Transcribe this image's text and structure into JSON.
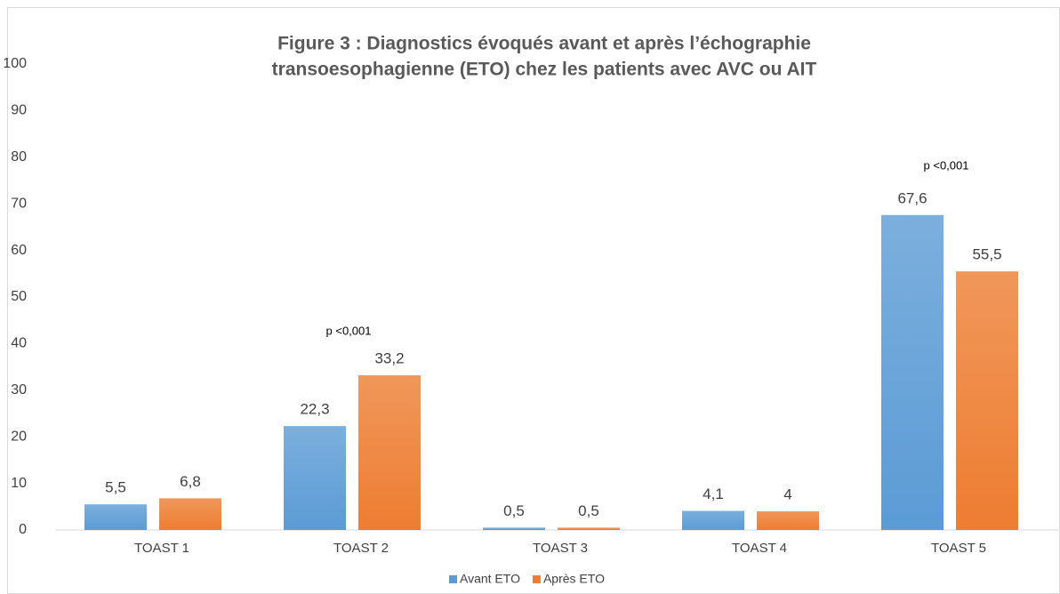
{
  "chart_data": {
    "type": "bar",
    "title": [
      "Figure 3 : Diagnostics évoqués avant et après l’échographie",
      "transoesophagienne (ETO) chez les patients avec AVC ou AIT"
    ],
    "categories": [
      "TOAST 1",
      "TOAST 2",
      "TOAST 3",
      "TOAST 4",
      "TOAST 5"
    ],
    "series": [
      {
        "name": "Avant ETO",
        "color": "#5b9bd5",
        "values": [
          5.5,
          22.3,
          0.5,
          4.1,
          67.6
        ],
        "value_labels": [
          "5,5",
          "22,3",
          "0,5",
          "4,1",
          "67,6"
        ]
      },
      {
        "name": "Après ETO",
        "color": "#ed7d31",
        "values": [
          6.8,
          33.2,
          0.5,
          4,
          55.5
        ],
        "value_labels": [
          "6,8",
          "33,2",
          "0,5",
          "4",
          "55,5"
        ]
      }
    ],
    "annotations": [
      "p <0,001",
      "p <0,001"
    ],
    "ylim": [
      0,
      100
    ],
    "yticks": [
      0,
      10,
      20,
      30,
      40,
      50,
      60,
      70,
      80,
      90,
      100
    ],
    "grid": false,
    "legend": "bottom"
  }
}
